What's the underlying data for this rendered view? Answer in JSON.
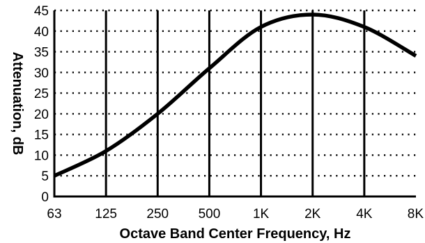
{
  "chart_data": {
    "type": "line",
    "title": "",
    "xlabel": "Octave Band Center Frequency, Hz",
    "ylabel": "Attenuation, dB",
    "categories": [
      "63",
      "125",
      "250",
      "500",
      "1K",
      "2K",
      "4K",
      "8K"
    ],
    "x_scale": "log2 (octave bands)",
    "ylim": [
      0,
      45
    ],
    "yticks": [
      0,
      5,
      10,
      15,
      20,
      25,
      30,
      35,
      40,
      45
    ],
    "grid": {
      "vertical": "solid lines at each octave band from 125 to 4K",
      "horizontal": "dotted lines at every 5 dB"
    },
    "legend": "none",
    "series": [
      {
        "x": [
          "63",
          "125",
          "250",
          "500",
          "1K",
          "2K",
          "4K",
          "8K"
        ],
        "values": [
          5,
          11,
          20,
          31,
          41,
          44,
          41,
          34
        ]
      }
    ],
    "colors": {
      "line": "#000000",
      "grid": "#000000",
      "background": "#ffffff"
    }
  }
}
